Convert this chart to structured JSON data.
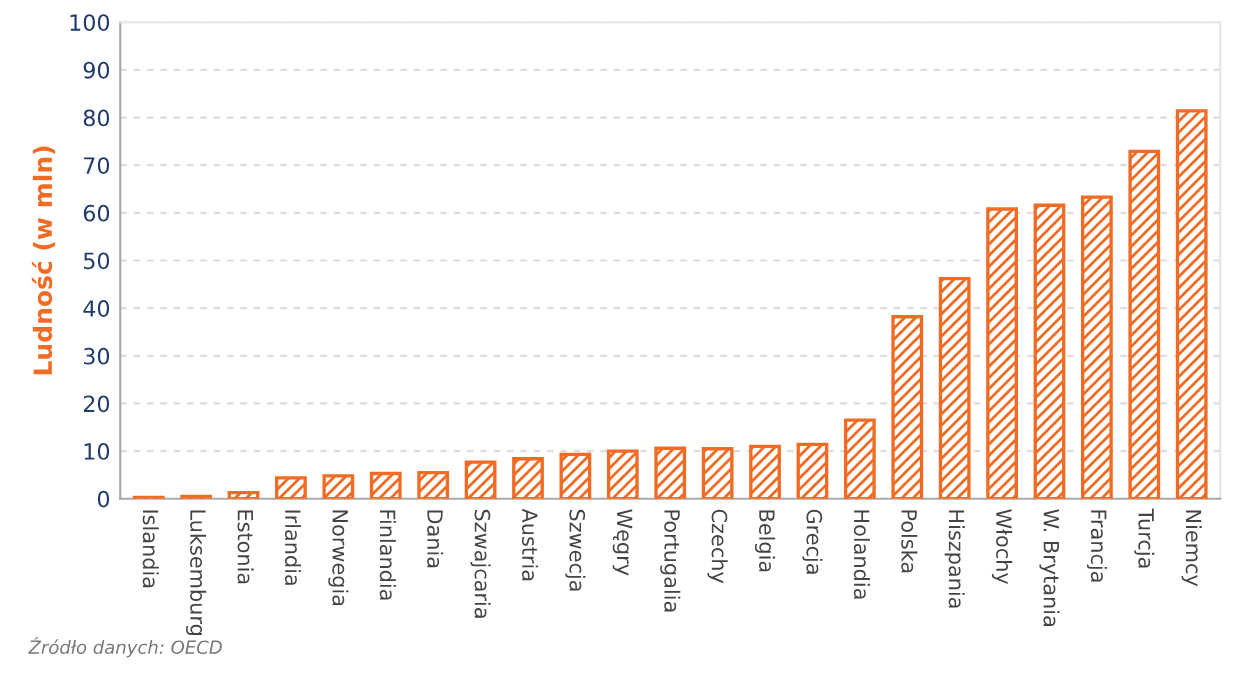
{
  "chart_data": {
    "type": "bar",
    "ylabel": "Ludność (w mln)",
    "categories": [
      "Islandia",
      "Luksemburg",
      "Estonia",
      "Irlandia",
      "Norwegia",
      "Finlandia",
      "Dania",
      "Szwajcaria",
      "Austria",
      "Szwecja",
      "Węgry",
      "Portugalia",
      "Czechy",
      "Belgia",
      "Grecja",
      "Holandia",
      "Polska",
      "Hiszpania",
      "Włochy",
      "W. Brytania",
      "Francja",
      "Turcja",
      "Niemcy"
    ],
    "values": [
      0.3,
      0.5,
      1.3,
      4.4,
      4.8,
      5.3,
      5.5,
      7.7,
      8.4,
      9.3,
      10.0,
      10.6,
      10.5,
      11.0,
      11.4,
      16.5,
      38.2,
      46.2,
      60.8,
      61.6,
      63.3,
      72.9,
      81.4
    ],
    "color": "#f26b24",
    "ylim": [
      0,
      100
    ],
    "yticks": [
      0,
      10,
      20,
      30,
      40,
      50,
      60,
      70,
      80,
      90,
      100
    ],
    "grid": "y",
    "annotations": [
      "Źródło danych: OECD"
    ]
  }
}
